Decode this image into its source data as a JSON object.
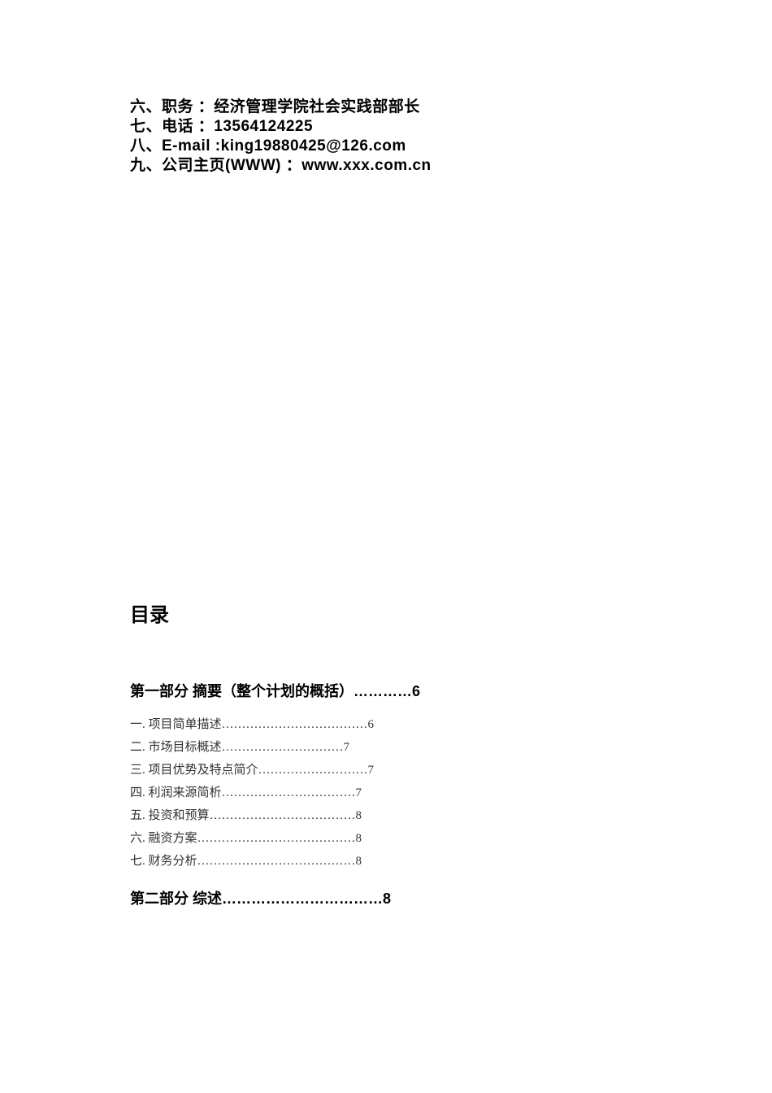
{
  "info": {
    "line1": "六、职务 ：经济管理学院社会实践部部长",
    "line2": "七、电话 ：13564124225",
    "line3": "八、E-mail :king19880425@126.com",
    "line4": "九、公司主页(WWW) ：www.xxx.com.cn"
  },
  "toc": {
    "title": "目录",
    "section1_header": "第一部分 摘要（整个计划的概括）…………6",
    "entries": [
      "一. 项目简单描述………………………………6",
      "二. 市场目标概述…………………………7",
      "三. 项目优势及特点简介………………………7",
      "四. 利润来源简析……………………………7",
      "五. 投资和预算………………………………8",
      "六. 融资方案…………………………………8",
      "七. 财务分析…………………………………8"
    ],
    "section2_header": "第二部分 综述……………………………8"
  }
}
